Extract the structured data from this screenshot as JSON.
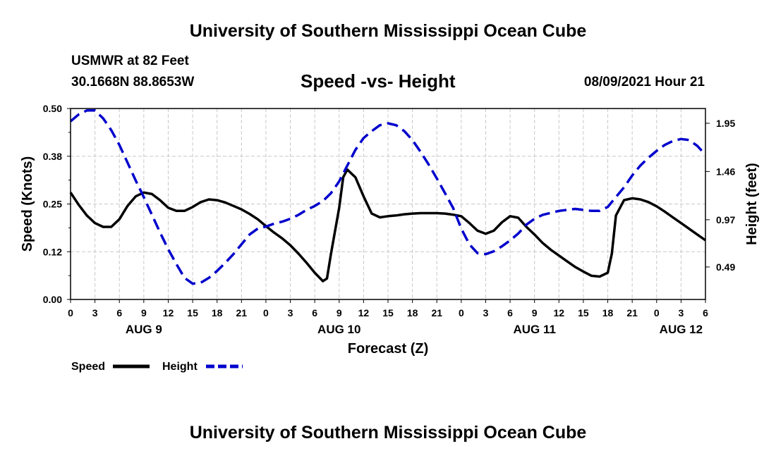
{
  "header": {
    "main_title": "University of Southern Mississippi Ocean Cube",
    "station": "USMWR at 82 Feet",
    "coordinates": "30.1668N  88.8653W",
    "subtitle": "Speed -vs- Height",
    "datestamp": "08/09/2021 Hour 21"
  },
  "footer": {
    "title": "University of Southern Mississippi Ocean Cube"
  },
  "colors": {
    "speed": "#000000",
    "height": "#0000cc",
    "grid": "#c8c8c8"
  },
  "chart_data": {
    "type": "line",
    "title": "Speed -vs- Height",
    "xlabel": "Forecast (Z)",
    "ylabel": "Speed (Knots)",
    "y2label": "Height (feet)",
    "x_unit": "hours from AUG 9 00Z",
    "xlim": [
      0,
      78
    ],
    "ylim": [
      0,
      0.5
    ],
    "y2lim": [
      0.16,
      2.1
    ],
    "yticks": [
      {
        "value": 0,
        "label": "0.00"
      },
      {
        "value": 0.125,
        "label": "0.12"
      },
      {
        "value": 0.25,
        "label": "0.25"
      },
      {
        "value": 0.375,
        "label": "0.38"
      },
      {
        "value": 0.5,
        "label": "0.50"
      }
    ],
    "y2ticks": [
      {
        "value": 0.49,
        "label": "0.49"
      },
      {
        "value": 0.97,
        "label": "0.97"
      },
      {
        "value": 1.46,
        "label": "1.46"
      },
      {
        "value": 1.95,
        "label": "1.95"
      }
    ],
    "xticks": [
      {
        "value": 0,
        "label": "0"
      },
      {
        "value": 3,
        "label": "3"
      },
      {
        "value": 6,
        "label": "6"
      },
      {
        "value": 9,
        "label": "9"
      },
      {
        "value": 12,
        "label": "12"
      },
      {
        "value": 15,
        "label": "15"
      },
      {
        "value": 18,
        "label": "18"
      },
      {
        "value": 21,
        "label": "21"
      },
      {
        "value": 24,
        "label": "0"
      },
      {
        "value": 27,
        "label": "3"
      },
      {
        "value": 30,
        "label": "6"
      },
      {
        "value": 33,
        "label": "9"
      },
      {
        "value": 36,
        "label": "12"
      },
      {
        "value": 39,
        "label": "15"
      },
      {
        "value": 42,
        "label": "18"
      },
      {
        "value": 45,
        "label": "21"
      },
      {
        "value": 48,
        "label": "0"
      },
      {
        "value": 51,
        "label": "3"
      },
      {
        "value": 54,
        "label": "6"
      },
      {
        "value": 57,
        "label": "9"
      },
      {
        "value": 60,
        "label": "12"
      },
      {
        "value": 63,
        "label": "15"
      },
      {
        "value": 66,
        "label": "18"
      },
      {
        "value": 69,
        "label": "21"
      },
      {
        "value": 72,
        "label": "0"
      },
      {
        "value": 75,
        "label": "3"
      },
      {
        "value": 78,
        "label": "6"
      }
    ],
    "day_labels": [
      {
        "value": 9,
        "label": "AUG 9"
      },
      {
        "value": 33,
        "label": "AUG 10"
      },
      {
        "value": 57,
        "label": "AUG 11"
      },
      {
        "value": 75,
        "label": "AUG 12"
      }
    ],
    "grid": true,
    "legend_position": "bottom-left",
    "series": [
      {
        "name": "Speed",
        "axis": "left",
        "style": "solid",
        "x": [
          0,
          1,
          2,
          3,
          4,
          5,
          6,
          7,
          8,
          9,
          10,
          11,
          12,
          13,
          14,
          15,
          16,
          17,
          18,
          19,
          20,
          21,
          22,
          23,
          24,
          25,
          26,
          27,
          28,
          29,
          30,
          31,
          31.5,
          32,
          33,
          33.5,
          34,
          35,
          36,
          37,
          38,
          39,
          40,
          41,
          42,
          43,
          44,
          45,
          46,
          47,
          48,
          49,
          50,
          51,
          52,
          53,
          54,
          55,
          56,
          57,
          58,
          59,
          60,
          61,
          62,
          63,
          64,
          65,
          66,
          66.5,
          67,
          68,
          69,
          70,
          71,
          72,
          73,
          74,
          75,
          76,
          77,
          78
        ],
        "values": [
          0.28,
          0.248,
          0.22,
          0.2,
          0.19,
          0.19,
          0.21,
          0.245,
          0.27,
          0.28,
          0.276,
          0.26,
          0.24,
          0.232,
          0.232,
          0.242,
          0.255,
          0.262,
          0.26,
          0.254,
          0.245,
          0.236,
          0.224,
          0.21,
          0.192,
          0.175,
          0.16,
          0.142,
          0.12,
          0.096,
          0.07,
          0.048,
          0.055,
          0.12,
          0.24,
          0.32,
          0.34,
          0.32,
          0.27,
          0.225,
          0.215,
          0.218,
          0.22,
          0.223,
          0.225,
          0.226,
          0.226,
          0.226,
          0.225,
          0.222,
          0.218,
          0.2,
          0.18,
          0.172,
          0.18,
          0.202,
          0.218,
          0.214,
          0.19,
          0.17,
          0.148,
          0.13,
          0.115,
          0.1,
          0.085,
          0.073,
          0.062,
          0.06,
          0.07,
          0.12,
          0.22,
          0.26,
          0.265,
          0.262,
          0.255,
          0.244,
          0.23,
          0.215,
          0.2,
          0.185,
          0.17,
          0.155
        ]
      },
      {
        "name": "Height",
        "axis": "right",
        "style": "dashed",
        "x": [
          0,
          1,
          2,
          3,
          4,
          5,
          6,
          7,
          8,
          9,
          10,
          11,
          12,
          13,
          14,
          15,
          16,
          17,
          18,
          19,
          20,
          21,
          22,
          23,
          24,
          25,
          26,
          27,
          28,
          29,
          30,
          31,
          32,
          33,
          34,
          35,
          36,
          37,
          38,
          39,
          40,
          41,
          42,
          43,
          44,
          45,
          46,
          47,
          48,
          49,
          50,
          51,
          52,
          53,
          54,
          55,
          56,
          57,
          58,
          59,
          60,
          61,
          62,
          63,
          64,
          65,
          66,
          67,
          68,
          69,
          70,
          71,
          72,
          73,
          74,
          75,
          76,
          77,
          78
        ],
        "values": [
          1.97,
          2.04,
          2.08,
          2.08,
          2.0,
          1.88,
          1.73,
          1.55,
          1.37,
          1.2,
          1.02,
          0.84,
          0.67,
          0.52,
          0.38,
          0.32,
          0.33,
          0.38,
          0.45,
          0.53,
          0.62,
          0.72,
          0.82,
          0.88,
          0.9,
          0.93,
          0.95,
          0.98,
          1.02,
          1.07,
          1.11,
          1.16,
          1.24,
          1.36,
          1.52,
          1.68,
          1.8,
          1.87,
          1.93,
          1.95,
          1.93,
          1.87,
          1.78,
          1.66,
          1.53,
          1.39,
          1.24,
          1.09,
          0.88,
          0.72,
          0.63,
          0.62,
          0.65,
          0.7,
          0.76,
          0.83,
          0.92,
          0.98,
          1.02,
          1.04,
          1.06,
          1.07,
          1.08,
          1.07,
          1.06,
          1.06,
          1.1,
          1.2,
          1.3,
          1.42,
          1.52,
          1.6,
          1.67,
          1.73,
          1.77,
          1.79,
          1.78,
          1.72,
          1.63
        ]
      }
    ]
  }
}
